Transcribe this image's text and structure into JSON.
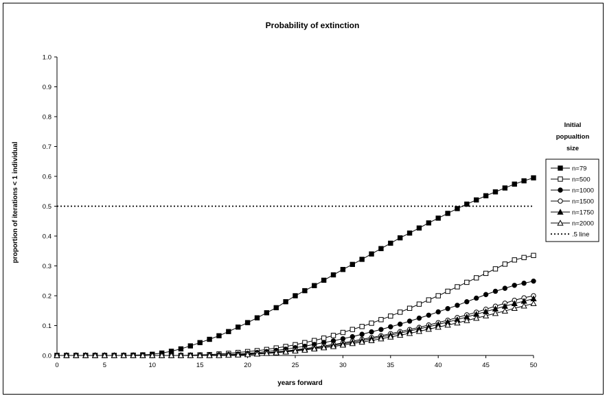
{
  "chart_data": {
    "type": "line",
    "title": "Probability of extinction",
    "xlabel": "years forward",
    "ylabel": "proportion of iterations < 1 individual",
    "xlim": [
      0,
      50
    ],
    "ylim": [
      0,
      1.0
    ],
    "x_ticks": [
      "0",
      "5",
      "10",
      "15",
      "20",
      "25",
      "30",
      "35",
      "40",
      "45",
      "50"
    ],
    "y_ticks": [
      "0.0",
      "0.1",
      "0.2",
      "0.3",
      "0.4",
      "0.5",
      "0.6",
      "0.7",
      "0.8",
      "0.9",
      "1.0"
    ],
    "grid": false,
    "legend_title": "Initial popualtion size",
    "legend_position": "right",
    "x": [
      0,
      1,
      2,
      3,
      4,
      5,
      6,
      7,
      8,
      9,
      10,
      11,
      12,
      13,
      14,
      15,
      16,
      17,
      18,
      19,
      20,
      21,
      22,
      23,
      24,
      25,
      26,
      27,
      28,
      29,
      30,
      31,
      32,
      33,
      34,
      35,
      36,
      37,
      38,
      39,
      40,
      41,
      42,
      43,
      44,
      45,
      46,
      47,
      48,
      49,
      50
    ],
    "series": [
      {
        "name": "n=79",
        "marker": "square-filled",
        "values": [
          0,
          0,
          0,
          0,
          0,
          0,
          0,
          0,
          0.001,
          0.002,
          0.004,
          0.008,
          0.014,
          0.022,
          0.032,
          0.043,
          0.054,
          0.066,
          0.08,
          0.095,
          0.11,
          0.126,
          0.143,
          0.16,
          0.18,
          0.2,
          0.217,
          0.234,
          0.252,
          0.27,
          0.288,
          0.305,
          0.322,
          0.34,
          0.358,
          0.376,
          0.394,
          0.41,
          0.427,
          0.444,
          0.46,
          0.476,
          0.492,
          0.507,
          0.521,
          0.535,
          0.548,
          0.561,
          0.574,
          0.585,
          0.595
        ]
      },
      {
        "name": "n=500",
        "marker": "square-open",
        "values": [
          0,
          0,
          0,
          0,
          0,
          0,
          0,
          0,
          0,
          0,
          0,
          0,
          0,
          0,
          0.001,
          0.002,
          0.003,
          0.005,
          0.007,
          0.01,
          0.013,
          0.016,
          0.02,
          0.025,
          0.03,
          0.036,
          0.043,
          0.05,
          0.058,
          0.067,
          0.077,
          0.087,
          0.097,
          0.108,
          0.12,
          0.132,
          0.145,
          0.158,
          0.172,
          0.186,
          0.2,
          0.215,
          0.23,
          0.245,
          0.26,
          0.275,
          0.29,
          0.306,
          0.32,
          0.328,
          0.335
        ]
      },
      {
        "name": "n=1000",
        "marker": "circle-filled",
        "values": [
          0,
          0,
          0,
          0,
          0,
          0,
          0,
          0,
          0,
          0,
          0,
          0,
          0,
          0,
          0,
          0,
          0.001,
          0.002,
          0.003,
          0.005,
          0.007,
          0.01,
          0.013,
          0.017,
          0.021,
          0.026,
          0.031,
          0.037,
          0.043,
          0.049,
          0.056,
          0.063,
          0.071,
          0.079,
          0.087,
          0.096,
          0.105,
          0.115,
          0.125,
          0.135,
          0.146,
          0.157,
          0.168,
          0.18,
          0.192,
          0.204,
          0.215,
          0.225,
          0.235,
          0.242,
          0.249
        ]
      },
      {
        "name": "n=1500",
        "marker": "circle-open",
        "values": [
          0,
          0,
          0,
          0,
          0,
          0,
          0,
          0,
          0,
          0,
          0,
          0,
          0,
          0,
          0,
          0,
          0,
          0.001,
          0.002,
          0.003,
          0.005,
          0.007,
          0.009,
          0.012,
          0.015,
          0.019,
          0.023,
          0.027,
          0.032,
          0.037,
          0.042,
          0.048,
          0.054,
          0.06,
          0.066,
          0.073,
          0.08,
          0.087,
          0.094,
          0.102,
          0.11,
          0.118,
          0.127,
          0.136,
          0.145,
          0.155,
          0.165,
          0.175,
          0.185,
          0.193,
          0.2
        ]
      },
      {
        "name": "n=1750",
        "marker": "triangle-filled",
        "values": [
          0,
          0,
          0,
          0,
          0,
          0,
          0,
          0,
          0,
          0,
          0,
          0,
          0,
          0,
          0,
          0,
          0,
          0.001,
          0.002,
          0.003,
          0.004,
          0.006,
          0.008,
          0.011,
          0.014,
          0.017,
          0.021,
          0.025,
          0.029,
          0.034,
          0.039,
          0.044,
          0.05,
          0.056,
          0.062,
          0.068,
          0.075,
          0.082,
          0.089,
          0.096,
          0.104,
          0.112,
          0.12,
          0.129,
          0.138,
          0.147,
          0.156,
          0.165,
          0.174,
          0.182,
          0.19
        ]
      },
      {
        "name": "n=2000",
        "marker": "triangle-open",
        "values": [
          0,
          0,
          0,
          0,
          0,
          0,
          0,
          0,
          0,
          0,
          0,
          0,
          0,
          0,
          0,
          0,
          0,
          0,
          0.001,
          0.002,
          0.003,
          0.005,
          0.007,
          0.009,
          0.012,
          0.015,
          0.018,
          0.022,
          0.026,
          0.03,
          0.035,
          0.04,
          0.045,
          0.05,
          0.056,
          0.062,
          0.068,
          0.074,
          0.081,
          0.088,
          0.095,
          0.102,
          0.109,
          0.117,
          0.125,
          0.133,
          0.141,
          0.149,
          0.158,
          0.166,
          0.174
        ]
      },
      {
        "name": ".5 line",
        "marker": "none",
        "style": "dotted",
        "values": [
          0.5,
          0.5,
          0.5,
          0.5,
          0.5,
          0.5,
          0.5,
          0.5,
          0.5,
          0.5,
          0.5,
          0.5,
          0.5,
          0.5,
          0.5,
          0.5,
          0.5,
          0.5,
          0.5,
          0.5,
          0.5,
          0.5,
          0.5,
          0.5,
          0.5,
          0.5,
          0.5,
          0.5,
          0.5,
          0.5,
          0.5,
          0.5,
          0.5,
          0.5,
          0.5,
          0.5,
          0.5,
          0.5,
          0.5,
          0.5,
          0.5,
          0.5,
          0.5,
          0.5,
          0.5,
          0.5,
          0.5,
          0.5,
          0.5,
          0.5,
          0.5
        ]
      }
    ],
    "colors": {
      "line": "#000000",
      "background": "#ffffff"
    }
  }
}
